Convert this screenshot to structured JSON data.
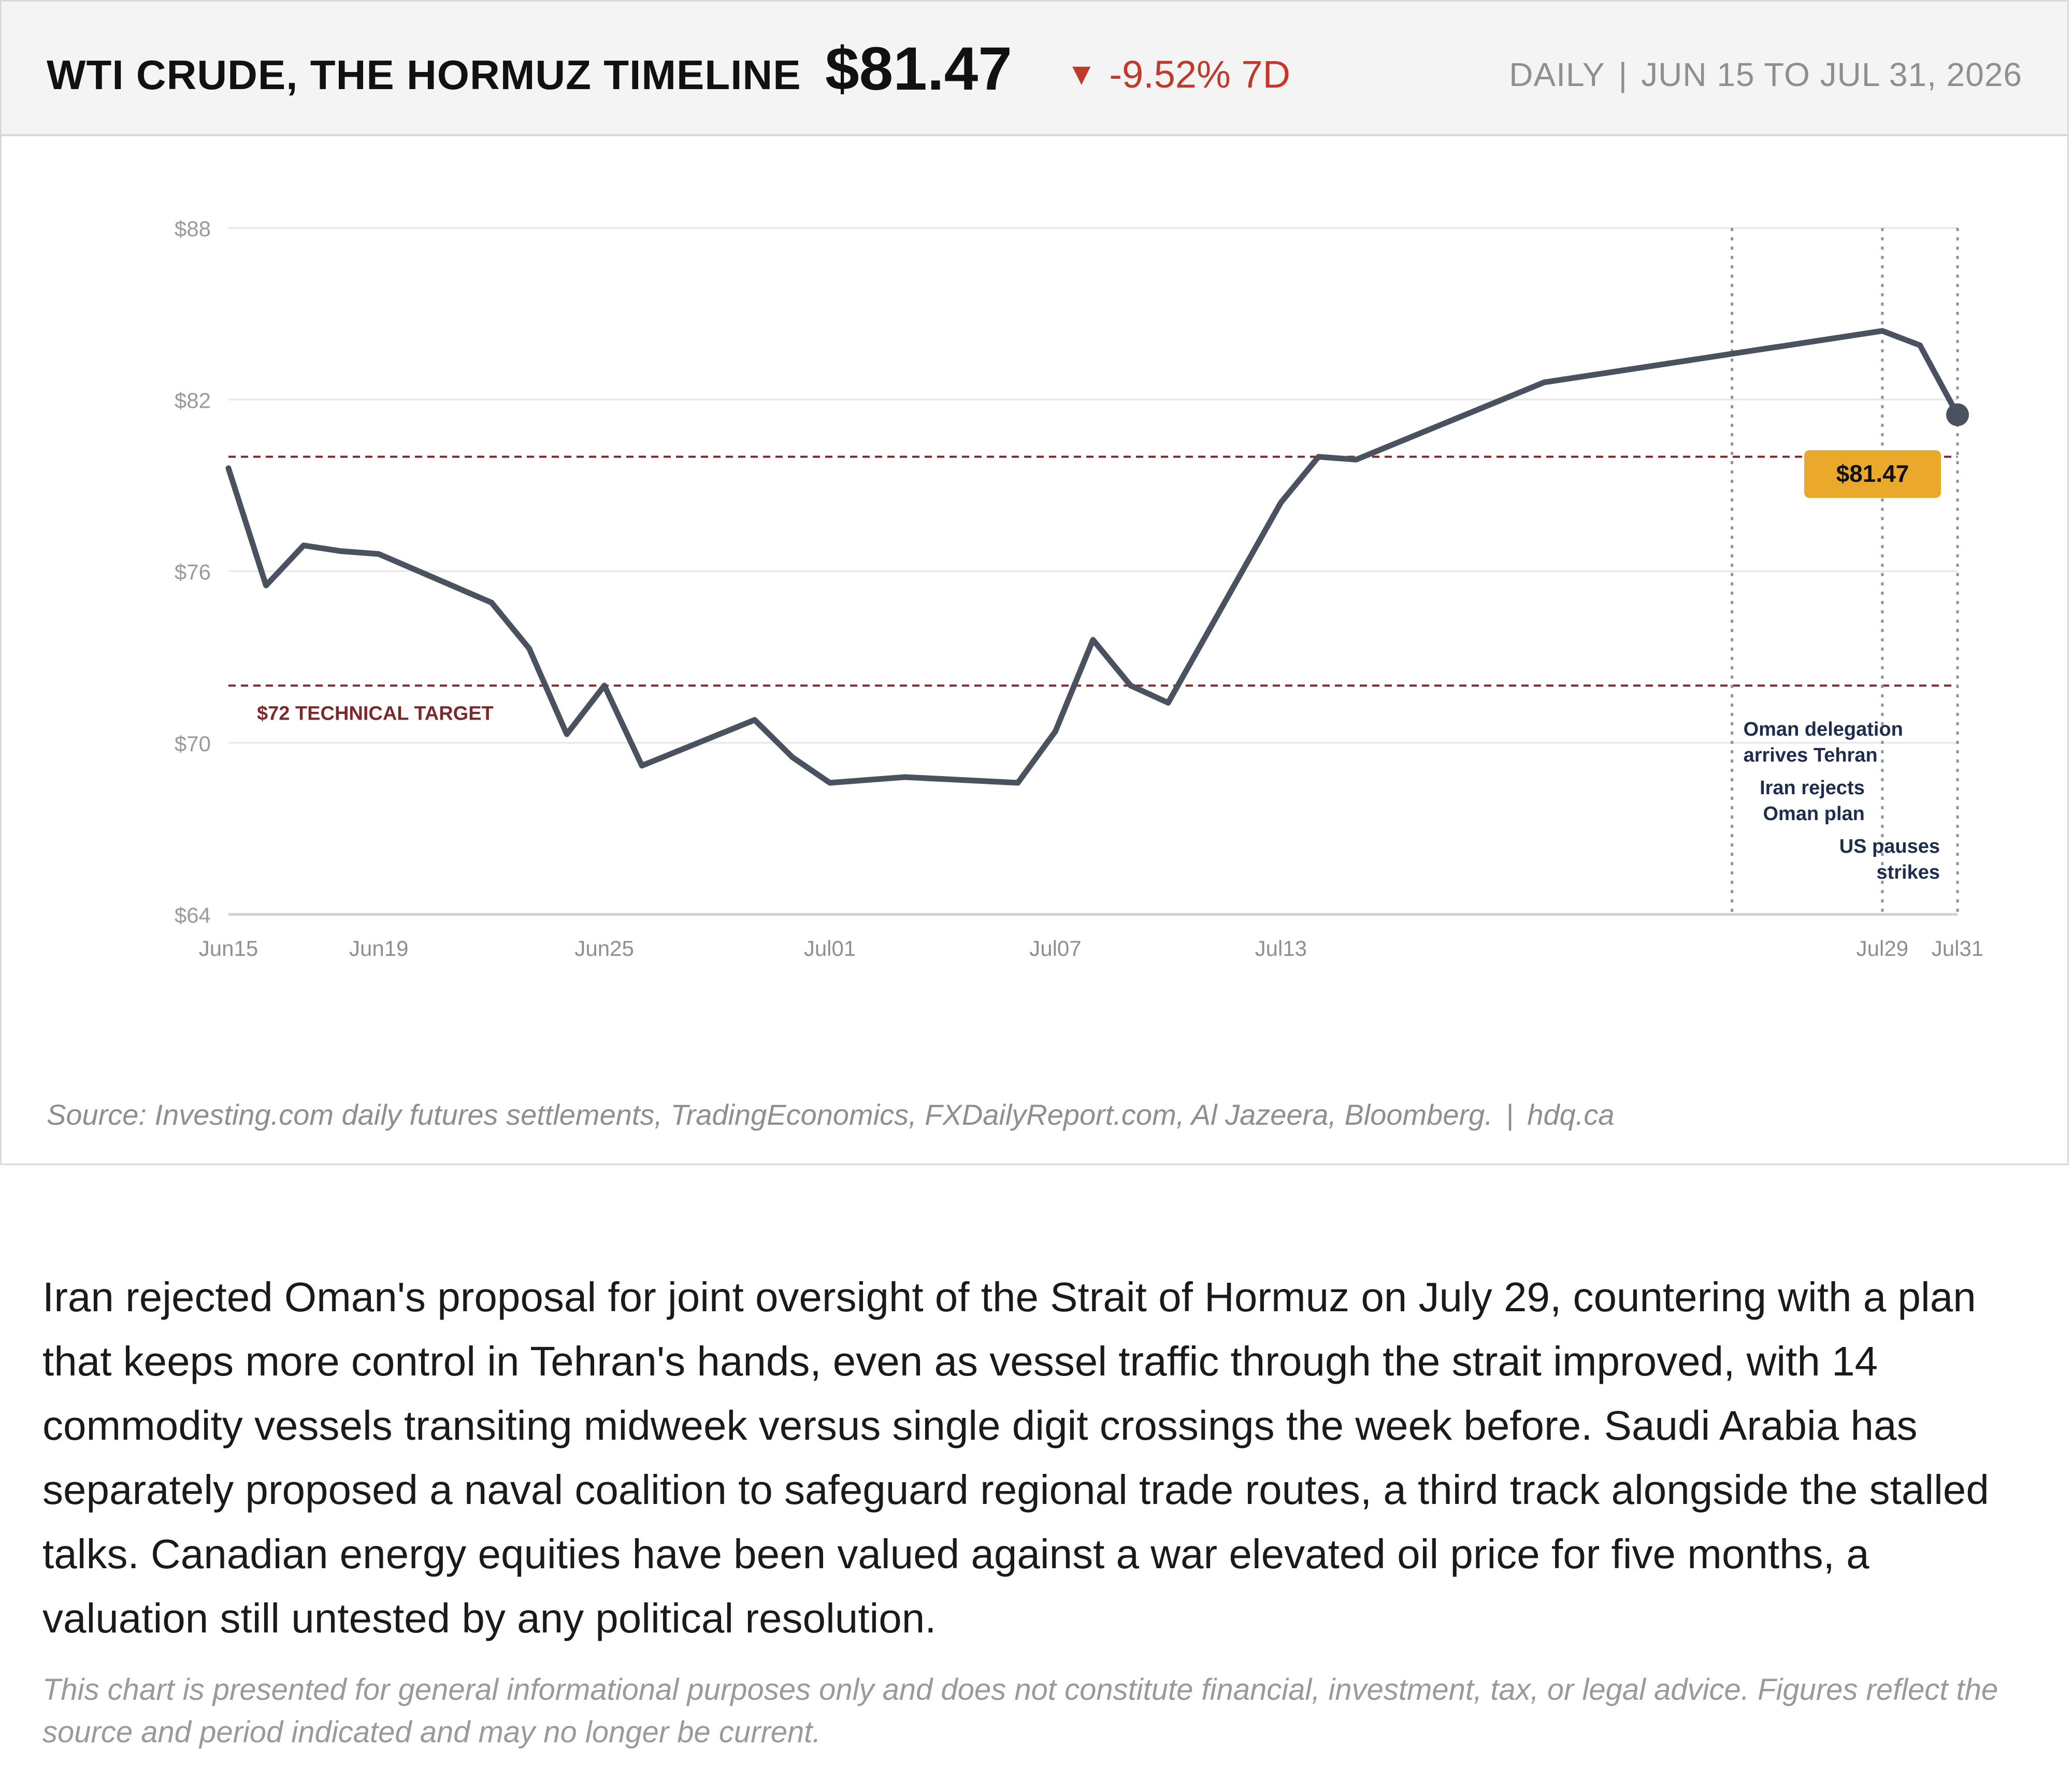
{
  "header": {
    "title": "WTI CRUDE, THE HORMUZ TIMELINE",
    "price": "$81.47",
    "change_arrow": "▼",
    "change": "-9.52% 7D",
    "frequency": "DAILY",
    "range_sep": "|",
    "date_range": "JUN 15 TO JUL 31, 2026"
  },
  "colors": {
    "line": "#4a5260",
    "reference": "#7a2a2a",
    "event": "#8a93b2",
    "event_text": "#1f2d4d",
    "badge": "#eaa92a",
    "negative": "#c0392b"
  },
  "chart_data": {
    "type": "line",
    "title": "",
    "xlabel": "",
    "ylabel": "",
    "ylim": [
      64,
      88
    ],
    "xlim": [
      "2026-06-15",
      "2026-07-31"
    ],
    "y_ticks": [
      {
        "value": 88,
        "label": "$88"
      },
      {
        "value": 82,
        "label": "$82"
      },
      {
        "value": 76,
        "label": "$76"
      },
      {
        "value": 70,
        "label": "$70"
      },
      {
        "value": 64,
        "label": "$64"
      }
    ],
    "x_ticks": [
      {
        "date": "2026-06-15",
        "label": "Jun15"
      },
      {
        "date": "2026-06-19",
        "label": "Jun19"
      },
      {
        "date": "2026-06-25",
        "label": "Jun25"
      },
      {
        "date": "2026-07-01",
        "label": "Jul01"
      },
      {
        "date": "2026-07-07",
        "label": "Jul07"
      },
      {
        "date": "2026-07-13",
        "label": "Jul13"
      },
      {
        "date": "2026-07-29",
        "label": "Jul29"
      },
      {
        "date": "2026-07-31",
        "label": "Jul31"
      }
    ],
    "grid": true,
    "series": [
      {
        "points": [
          {
            "x": "2026-06-15",
            "y": 79.6
          },
          {
            "x": "2026-06-16",
            "y": 75.5
          },
          {
            "x": "2026-06-17",
            "y": 76.9
          },
          {
            "x": "2026-06-18",
            "y": 76.7
          },
          {
            "x": "2026-06-19",
            "y": 76.6
          },
          {
            "x": "2026-06-22",
            "y": 74.9
          },
          {
            "x": "2026-06-23",
            "y": 73.3
          },
          {
            "x": "2026-06-24",
            "y": 70.3
          },
          {
            "x": "2026-06-25",
            "y": 72.0
          },
          {
            "x": "2026-06-26",
            "y": 69.2
          },
          {
            "x": "2026-06-29",
            "y": 70.8
          },
          {
            "x": "2026-06-30",
            "y": 69.5
          },
          {
            "x": "2026-07-01",
            "y": 68.6
          },
          {
            "x": "2026-07-03",
            "y": 68.8
          },
          {
            "x": "2026-07-06",
            "y": 68.6
          },
          {
            "x": "2026-07-07",
            "y": 70.4
          },
          {
            "x": "2026-07-08",
            "y": 73.6
          },
          {
            "x": "2026-07-09",
            "y": 72.0
          },
          {
            "x": "2026-07-10",
            "y": 71.4
          },
          {
            "x": "2026-07-13",
            "y": 78.4
          },
          {
            "x": "2026-07-14",
            "y": 80.0
          },
          {
            "x": "2026-07-15",
            "y": 79.9
          },
          {
            "x": "2026-07-20",
            "y": 82.6
          },
          {
            "x": "2026-07-29",
            "y": 84.4
          },
          {
            "x": "2026-07-30",
            "y": 83.9
          },
          {
            "x": "2026-07-31",
            "y": 81.47
          }
        ]
      }
    ],
    "reference_lines": [
      {
        "value": 80.0,
        "label": ""
      },
      {
        "value": 72.0,
        "label": "$72 TECHNICAL TARGET"
      }
    ],
    "last_value_label": "$81.47",
    "events": [
      {
        "date": "2026-07-25",
        "lines": [
          "Oman delegation",
          "arrives Tehran"
        ],
        "align": "start"
      },
      {
        "date": "2026-07-29",
        "lines": [
          "Iran rejects",
          "Oman plan"
        ],
        "align": "end"
      },
      {
        "date": "2026-07-31",
        "lines": [
          "US pauses",
          "strikes"
        ],
        "align": "end"
      }
    ]
  },
  "footer": {
    "source": "Source: Investing.com daily futures settlements, TradingEconomics, FXDailyReport.com, Al Jazeera, Bloomberg.",
    "sep": "|",
    "site": "hdq.ca"
  },
  "article": {
    "body": "Iran rejected Oman's proposal for joint oversight of the Strait of Hormuz on July 29, countering with a plan that keeps more control in Tehran's hands, even as vessel traffic through the strait improved, with 14 commodity vessels transiting midweek versus single digit crossings the week before. Saudi Arabia has separately proposed a naval coalition to safeguard regional trade routes, a third track alongside the stalled talks. Canadian energy equities have been valued against a war elevated oil price for five months, a valuation still untested by any political resolution.",
    "disclaimer": "This chart is presented for general informational purposes only and does not constitute financial, investment, tax, or legal advice. Figures reflect the source and period indicated and may no longer be current."
  }
}
